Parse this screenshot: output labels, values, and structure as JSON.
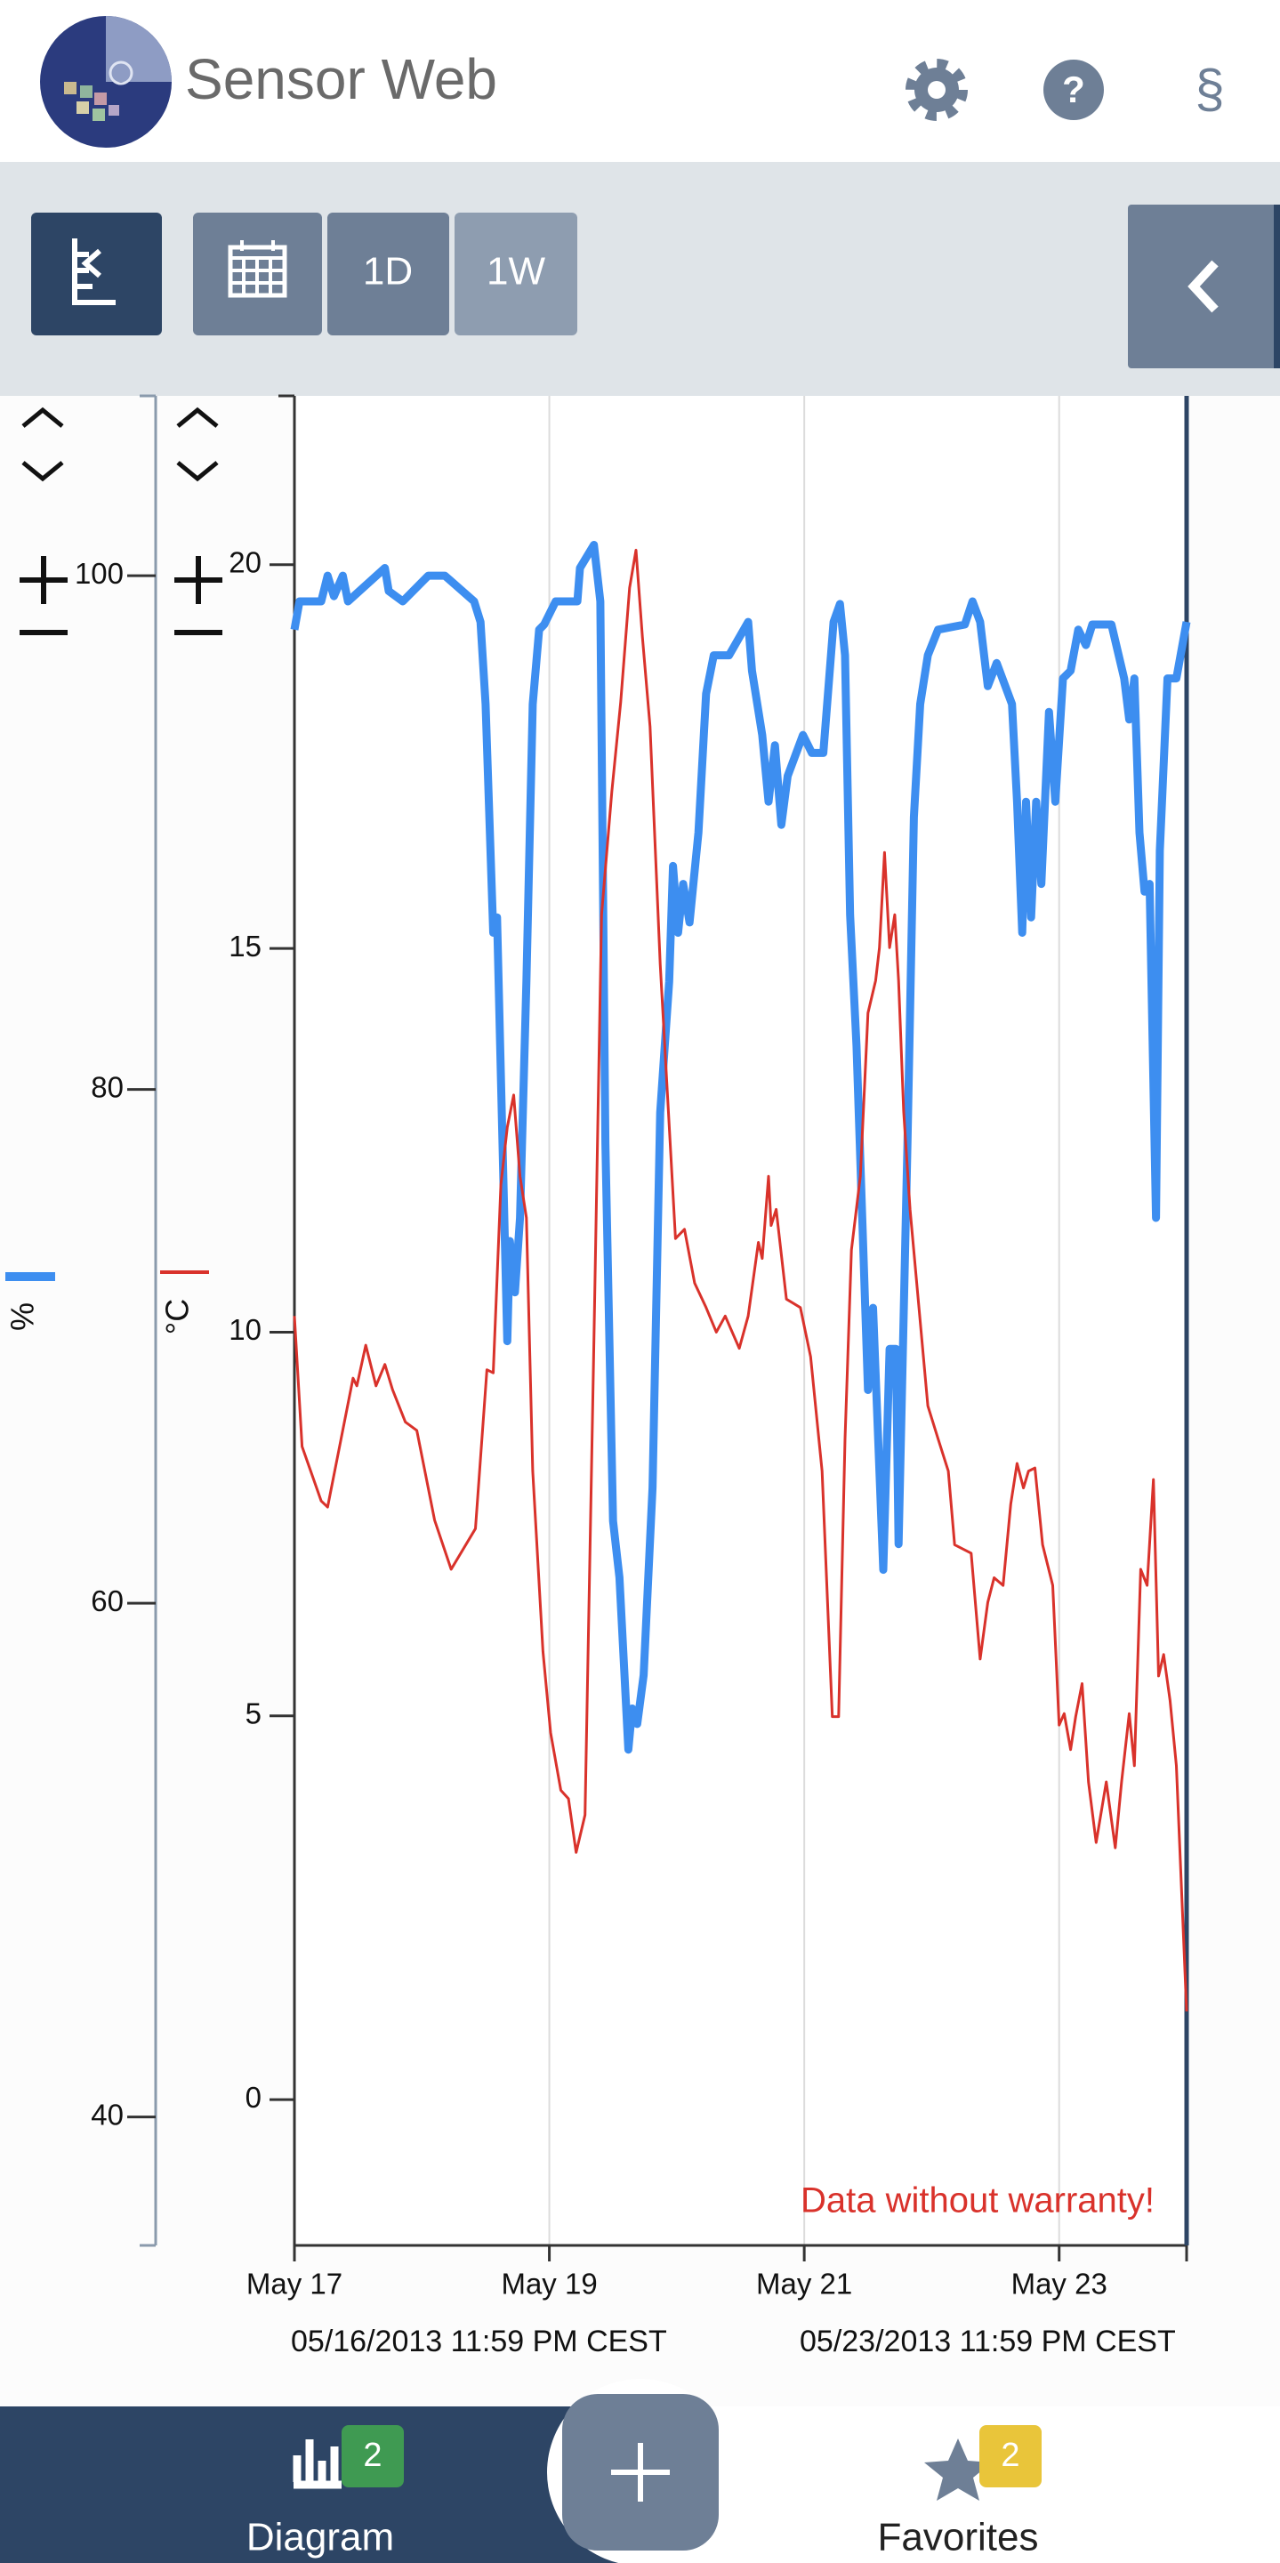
{
  "header": {
    "title": "Sensor Web",
    "help": "?",
    "legal": "§"
  },
  "toolbar": {
    "buttons": [
      "1D",
      "1W"
    ]
  },
  "chart_data": {
    "type": "line",
    "y_label": "%",
    "y2_label": "°C",
    "xlim": [
      17,
      24
    ],
    "xticks": [
      {
        "value": 17,
        "label": "May 17"
      },
      {
        "value": 19,
        "label": "May 19"
      },
      {
        "value": 21,
        "label": "May 21"
      },
      {
        "value": 23,
        "label": "May 23"
      }
    ],
    "xgrid": true,
    "ylim": [
      35,
      107
    ],
    "yticks": [
      40,
      60,
      80,
      100
    ],
    "y2lim": [
      -1.9,
      22.2
    ],
    "y2ticks": [
      0,
      5,
      10,
      15,
      20
    ],
    "annotation": "Data without warranty!",
    "range_start": "05/16/2013 11:59 PM CEST",
    "range_end": "05/23/2013 11:59 PM CEST",
    "series": [
      {
        "color": "#3d8ef0",
        "axis": "y",
        "x": [
          17.0,
          17.04,
          17.21,
          17.26,
          17.31,
          17.38,
          17.42,
          17.71,
          17.74,
          17.85,
          18.05,
          18.18,
          18.41,
          18.46,
          18.5,
          18.56,
          18.59,
          18.67,
          18.69,
          18.73,
          18.77,
          18.82,
          18.87,
          18.92,
          18.96,
          19.05,
          19.22,
          19.24,
          19.35,
          19.4,
          19.44,
          19.5,
          19.55,
          19.62,
          19.65,
          19.69,
          19.74,
          19.81,
          19.87,
          19.94,
          19.97,
          20.01,
          20.05,
          20.1,
          20.17,
          20.23,
          20.29,
          20.41,
          20.56,
          20.59,
          20.67,
          20.72,
          20.77,
          20.82,
          20.87,
          20.99,
          21.06,
          21.15,
          21.18,
          21.23,
          21.28,
          21.32,
          21.36,
          21.41,
          21.5,
          21.54,
          21.62,
          21.67,
          21.72,
          21.74,
          21.81,
          21.86,
          21.91,
          21.97,
          22.05,
          22.26,
          22.32,
          22.38,
          22.44,
          22.51,
          22.63,
          22.67,
          22.71,
          22.74,
          22.78,
          22.82,
          22.86,
          22.92,
          22.97,
          23.03,
          23.09,
          23.15,
          23.21,
          23.26,
          23.41,
          23.51,
          23.55,
          23.59,
          23.63,
          23.67,
          23.71,
          23.76,
          23.79,
          23.85,
          23.92,
          24.0
        ],
        "values": [
          97.9,
          99.0,
          99.0,
          100.0,
          99.2,
          100.0,
          99.0,
          100.3,
          99.4,
          99.0,
          100.0,
          100.0,
          99.0,
          98.2,
          95.0,
          86.1,
          86.7,
          70.2,
          74.1,
          72.1,
          75.0,
          84.2,
          95.0,
          97.9,
          98.1,
          99.0,
          99.0,
          100.3,
          101.2,
          99.0,
          77.9,
          63.2,
          61.0,
          54.3,
          55.9,
          55.3,
          57.2,
          64.5,
          79.1,
          84.2,
          88.7,
          86.1,
          88.0,
          86.5,
          90.0,
          95.4,
          96.9,
          96.9,
          98.2,
          96.3,
          93.8,
          91.2,
          93.4,
          90.3,
          92.2,
          93.8,
          93.1,
          93.1,
          95.0,
          98.2,
          98.9,
          96.9,
          86.8,
          81.7,
          68.3,
          71.5,
          61.3,
          69.9,
          69.9,
          62.3,
          77.9,
          90.6,
          95.0,
          96.9,
          97.9,
          98.1,
          99.0,
          98.2,
          95.7,
          96.6,
          95.0,
          91.2,
          86.1,
          91.2,
          86.7,
          91.2,
          88.0,
          94.7,
          91.2,
          96.0,
          96.3,
          97.9,
          97.3,
          98.1,
          98.1,
          96.0,
          94.4,
          96.0,
          90.0,
          87.7,
          88.0,
          75.0,
          89.3,
          96.0,
          96.0,
          98.2
        ]
      },
      {
        "color": "#d9322b",
        "axis": "y2",
        "x": [
          17.0,
          17.06,
          17.21,
          17.26,
          17.46,
          17.49,
          17.56,
          17.64,
          17.71,
          17.77,
          17.87,
          17.96,
          18.1,
          18.23,
          18.42,
          18.51,
          18.56,
          18.62,
          18.67,
          18.72,
          18.77,
          18.82,
          18.87,
          18.95,
          19.01,
          19.09,
          19.15,
          19.21,
          19.28,
          19.35,
          19.41,
          19.49,
          19.56,
          19.63,
          19.68,
          19.73,
          19.79,
          19.87,
          19.99,
          20.06,
          20.14,
          20.23,
          20.31,
          20.38,
          20.49,
          20.56,
          20.64,
          20.67,
          20.72,
          20.74,
          20.78,
          20.86,
          20.97,
          21.05,
          21.14,
          21.22,
          21.27,
          21.32,
          21.37,
          21.44,
          21.5,
          21.56,
          21.59,
          21.63,
          21.67,
          21.71,
          21.74,
          21.78,
          21.83,
          21.9,
          21.97,
          22.05,
          22.13,
          22.18,
          22.31,
          22.38,
          22.44,
          22.49,
          22.56,
          22.62,
          22.67,
          22.72,
          22.76,
          22.81,
          22.87,
          22.95,
          23.0,
          23.04,
          23.09,
          23.13,
          23.18,
          23.23,
          23.29,
          23.37,
          23.44,
          23.49,
          23.55,
          23.59,
          23.64,
          23.69,
          23.74,
          23.78,
          23.82,
          23.87,
          23.92,
          24.0
        ],
        "values": [
          10.21,
          8.51,
          7.8,
          7.72,
          9.4,
          9.3,
          9.83,
          9.3,
          9.58,
          9.25,
          8.83,
          8.72,
          7.55,
          6.91,
          7.44,
          9.51,
          9.47,
          11.92,
          12.67,
          13.09,
          12.03,
          11.49,
          8.19,
          5.84,
          4.78,
          4.03,
          3.92,
          3.22,
          3.71,
          9.89,
          15.44,
          17.04,
          18.21,
          19.7,
          20.19,
          19.06,
          17.89,
          14.8,
          11.22,
          11.34,
          10.64,
          10.32,
          10.0,
          10.21,
          9.79,
          10.21,
          11.17,
          10.96,
          12.03,
          11.39,
          11.6,
          10.43,
          10.32,
          9.68,
          8.19,
          4.99,
          4.99,
          8.61,
          11.07,
          12.03,
          14.16,
          14.58,
          15.01,
          16.25,
          15.01,
          15.44,
          14.58,
          12.88,
          11.6,
          10.32,
          9.04,
          8.61,
          8.19,
          7.23,
          7.12,
          5.74,
          6.48,
          6.8,
          6.7,
          7.76,
          8.29,
          7.97,
          8.19,
          8.23,
          7.23,
          6.7,
          4.88,
          5.03,
          4.56,
          4.99,
          5.42,
          4.14,
          3.35,
          4.14,
          3.28,
          4.14,
          5.03,
          4.35,
          6.91,
          6.7,
          8.08,
          5.52,
          5.8,
          5.2,
          4.35,
          1.15
        ]
      }
    ]
  },
  "footer": {
    "nav": [
      {
        "label": "Diagram",
        "badge": "2"
      },
      {
        "label": "Favorites",
        "badge": "2"
      }
    ]
  }
}
